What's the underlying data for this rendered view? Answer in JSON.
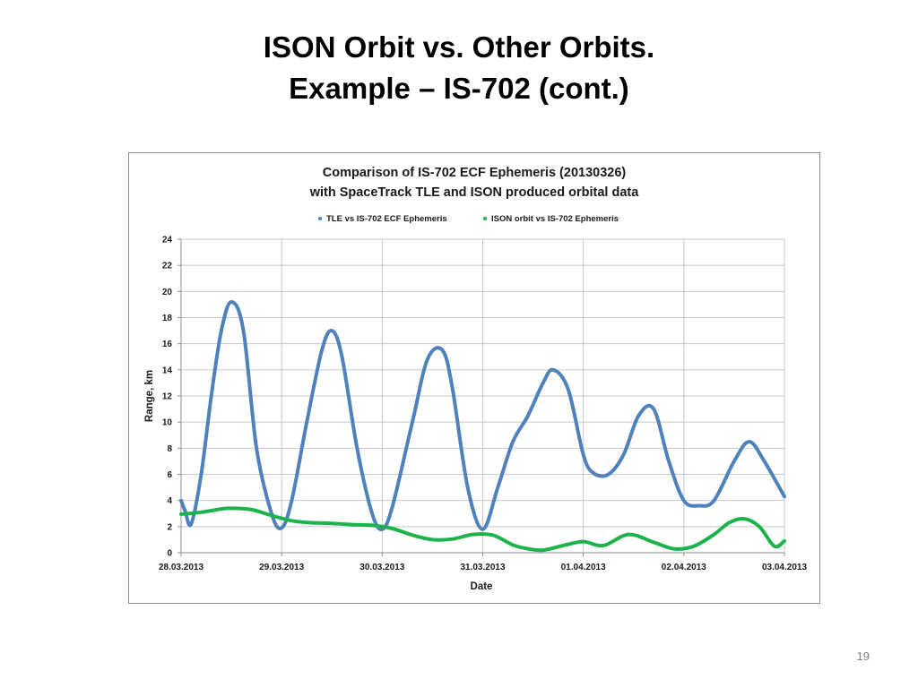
{
  "slide": {
    "title_line1": "ISON Orbit vs. Other Orbits.",
    "title_line2": "Example – IS-702 (cont.)",
    "page_number": "19"
  },
  "chart_data": {
    "type": "line",
    "title_line1": "Comparison of IS-702 ECF Ephemeris (20130326)",
    "title_line2": "with SpaceTrack TLE and ISON produced orbital data",
    "xlabel": "Date",
    "ylabel": "Range, km",
    "xlim": [
      "28.03.2013",
      "03.04.2013"
    ],
    "ylim": [
      0,
      24
    ],
    "yticks": [
      0,
      2,
      4,
      6,
      8,
      10,
      12,
      14,
      16,
      18,
      20,
      22,
      24
    ],
    "xticks": [
      "28.03.2013",
      "29.03.2013",
      "30.03.2013",
      "31.03.2013",
      "01.04.2013",
      "02.04.2013",
      "03.04.2013"
    ],
    "grid": true,
    "legend_position": "top",
    "series": [
      {
        "name": "TLE vs IS-702 ECF Ephemeris",
        "color": "#4f81bd",
        "x": [
          0,
          0.04,
          0.1,
          0.2,
          0.3,
          0.4,
          0.5,
          0.62,
          0.75,
          0.9,
          1.0,
          1.1,
          1.25,
          1.4,
          1.5,
          1.6,
          1.75,
          1.9,
          2.0,
          2.1,
          2.3,
          2.45,
          2.6,
          2.7,
          2.85,
          3.0,
          3.15,
          3.3,
          3.45,
          3.6,
          3.7,
          3.85,
          4.0,
          4.1,
          4.25,
          4.4,
          4.55,
          4.7,
          4.85,
          5.0,
          5.15,
          5.3,
          5.5,
          5.65,
          5.8,
          6.0
        ],
        "y": [
          4.0,
          3.2,
          2.2,
          6.0,
          12.0,
          17.0,
          19.2,
          17.0,
          8.0,
          3.0,
          1.9,
          4.0,
          10.0,
          15.5,
          17.0,
          15.0,
          8.0,
          3.0,
          1.8,
          3.5,
          10.0,
          14.8,
          15.5,
          12.5,
          5.0,
          1.8,
          5.0,
          8.5,
          10.5,
          13.0,
          14.0,
          12.5,
          7.5,
          6.1,
          6.0,
          7.5,
          10.5,
          11.0,
          7.0,
          4.0,
          3.6,
          4.0,
          7.0,
          8.5,
          7.0,
          4.3
        ]
      },
      {
        "name": "ISON orbit vs IS-702 Ephemeris",
        "color": "#1bb34a",
        "x": [
          0,
          0.2,
          0.4,
          0.5,
          0.7,
          0.9,
          1.1,
          1.3,
          1.5,
          1.7,
          1.9,
          2.1,
          2.3,
          2.5,
          2.7,
          2.9,
          3.1,
          3.3,
          3.45,
          3.6,
          3.8,
          4.0,
          4.2,
          4.45,
          4.7,
          4.9,
          5.1,
          5.3,
          5.45,
          5.6,
          5.75,
          5.9,
          6.0
        ],
        "y": [
          2.95,
          3.1,
          3.35,
          3.4,
          3.3,
          2.85,
          2.45,
          2.3,
          2.25,
          2.15,
          2.1,
          1.85,
          1.35,
          1.0,
          1.05,
          1.4,
          1.35,
          0.6,
          0.3,
          0.2,
          0.55,
          0.85,
          0.55,
          1.4,
          0.8,
          0.3,
          0.5,
          1.4,
          2.3,
          2.6,
          2.0,
          0.5,
          0.9
        ]
      }
    ]
  }
}
